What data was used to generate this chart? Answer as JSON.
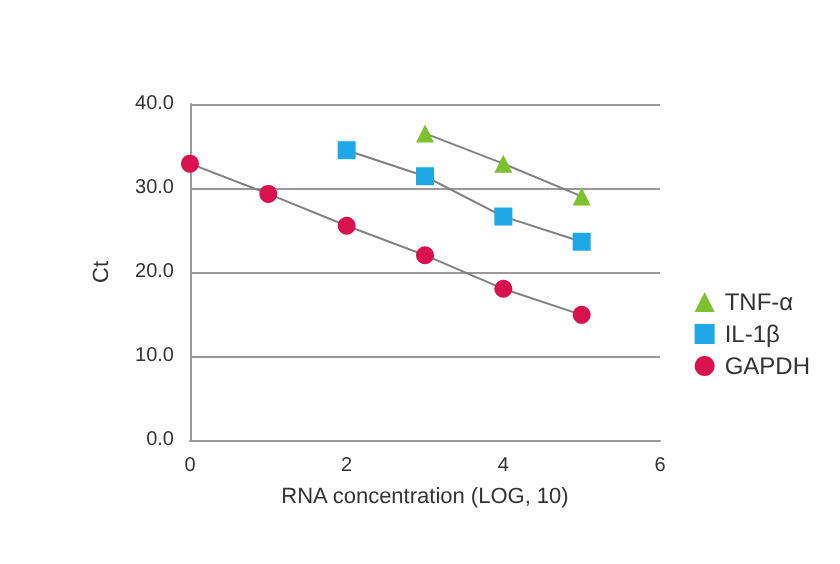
{
  "chart_data": {
    "type": "line",
    "xlabel": "RNA concentration (LOG, 10)",
    "ylabel": "Ct",
    "series": [
      {
        "name": "TNF-α",
        "color": "#7dc12f",
        "marker": "triangle",
        "x": [
          3,
          4,
          5
        ],
        "values": [
          36.5,
          32.9,
          29.0
        ]
      },
      {
        "name": "IL-1β",
        "color": "#1ea9e6",
        "marker": "square",
        "x": [
          2,
          3,
          4,
          5
        ],
        "values": [
          34.5,
          31.4,
          26.6,
          23.6
        ]
      },
      {
        "name": "GAPDH",
        "color": "#d9124f",
        "marker": "circle",
        "x": [
          0,
          1,
          2,
          3,
          4,
          5
        ],
        "values": [
          32.9,
          29.3,
          25.5,
          22.0,
          18.0,
          14.9
        ]
      }
    ],
    "xlim": [
      0,
      6
    ],
    "xticks": [
      0,
      2,
      4,
      6
    ],
    "ylim": [
      0,
      40
    ],
    "yticks": [
      {
        "value": 0,
        "label": "0.0"
      },
      {
        "value": 10,
        "label": "10.0"
      },
      {
        "value": 20,
        "label": "20.0"
      },
      {
        "value": 30,
        "label": "30.0"
      },
      {
        "value": 40,
        "label": "40.0"
      }
    ],
    "grid": "y",
    "legend": "right"
  }
}
